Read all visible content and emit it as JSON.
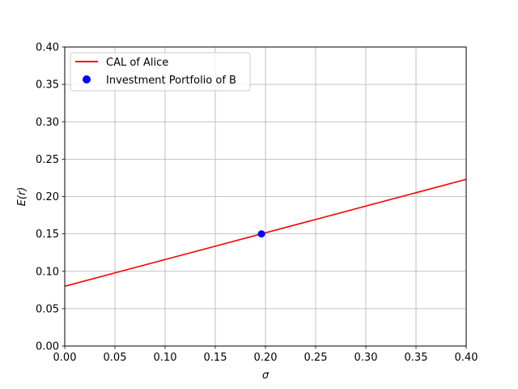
{
  "chart_data": {
    "type": "line",
    "xlabel": "σ",
    "ylabel": "E(r)",
    "xlim": [
      0.0,
      0.4
    ],
    "ylim": [
      0.0,
      0.4
    ],
    "x_ticks": [
      "0.00",
      "0.05",
      "0.10",
      "0.15",
      "0.20",
      "0.25",
      "0.30",
      "0.35",
      "0.40"
    ],
    "y_ticks": [
      "0.00",
      "0.05",
      "0.10",
      "0.15",
      "0.20",
      "0.25",
      "0.30",
      "0.35",
      "0.40"
    ],
    "grid": true,
    "legend_position": "top-left",
    "series": [
      {
        "name": "CAL of Alice",
        "kind": "line",
        "color": "#ff0000",
        "x": [
          0.0,
          0.4
        ],
        "y": [
          0.08,
          0.223
        ]
      },
      {
        "name": "Investment Portfolio of B",
        "kind": "scatter",
        "color": "#0000ff",
        "x": [
          0.196
        ],
        "y": [
          0.15
        ]
      }
    ]
  }
}
